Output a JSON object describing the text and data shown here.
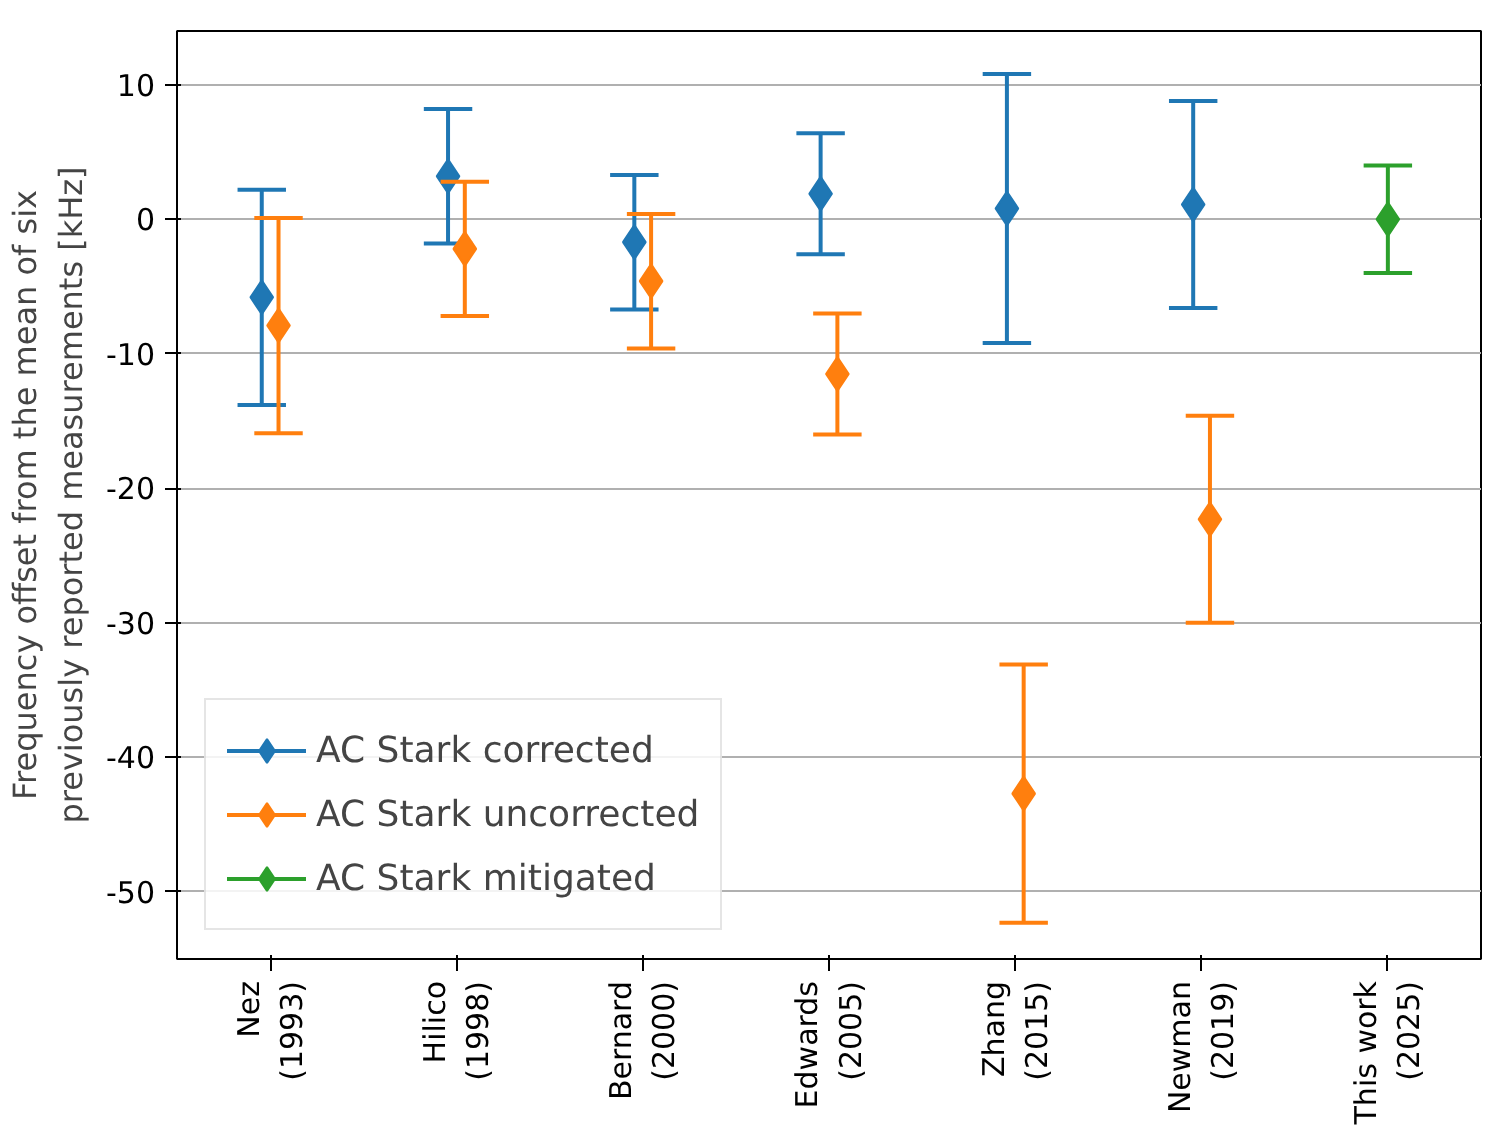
{
  "chart_data": {
    "type": "scatter",
    "ylabel": "Frequency offset from the mean of six\npreviously reported measurements [kHz]",
    "categories": [
      "Nez\n(1993)",
      "Hilico\n(1998)",
      "Bernard\n(2000)",
      "Edwards\n(2005)",
      "Zhang\n(2015)",
      "Newman\n(2019)",
      "This work\n(2025)"
    ],
    "series": [
      {
        "name": "AC Stark corrected",
        "color": "#1f77b4",
        "values": [
          -5.8,
          3.2,
          -1.7,
          1.9,
          0.8,
          1.1,
          null
        ],
        "errors": [
          8,
          5,
          5,
          4.5,
          10,
          7.7,
          null
        ]
      },
      {
        "name": "AC Stark uncorrected",
        "color": "#ff7f0e",
        "values": [
          -7.9,
          -2.2,
          -4.6,
          -11.5,
          -42.7,
          -22.3,
          null
        ],
        "errors": [
          8,
          5,
          5,
          4.5,
          9.6,
          7.7,
          null
        ]
      },
      {
        "name": "AC Stark mitigated",
        "color": "#2ca02c",
        "values": [
          null,
          null,
          null,
          null,
          null,
          null,
          0
        ],
        "errors": [
          null,
          null,
          null,
          null,
          null,
          null,
          4
        ]
      }
    ],
    "ylim": [
      -55,
      14
    ],
    "yticks": [
      -50,
      -40,
      -30,
      -20,
      -10,
      0,
      10
    ],
    "grid": "y",
    "legend": "bottom left",
    "marker": "diamond"
  }
}
